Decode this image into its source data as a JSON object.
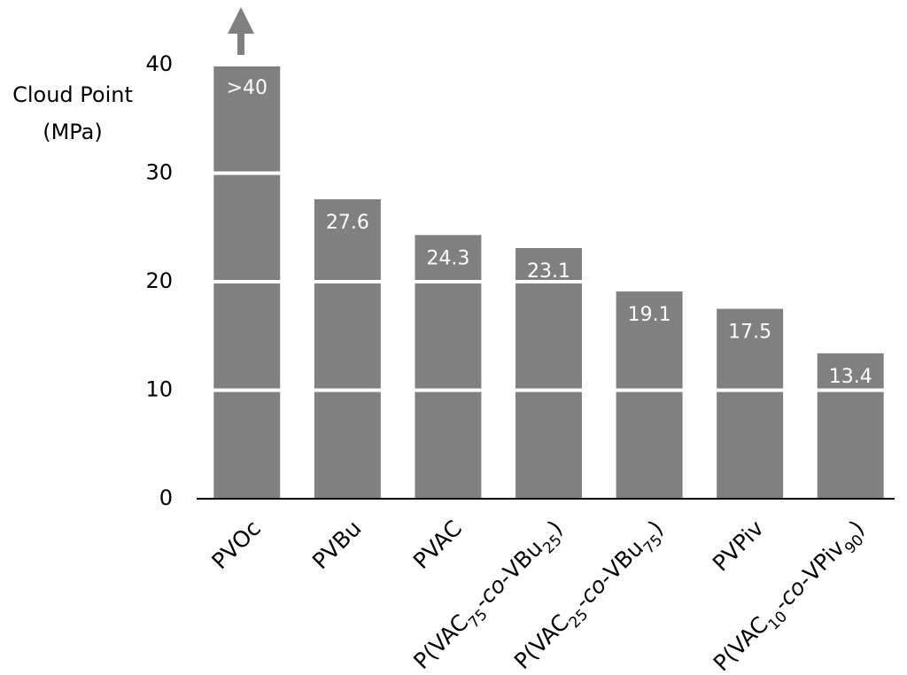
{
  "chart_data": {
    "type": "bar",
    "y_label": [
      "Cloud Point",
      "(MPa)"
    ],
    "categories": [
      "PVOc",
      "PVBu",
      "PVAC",
      "P(VAC75-co-VBu25)",
      "P(VAC25-co-VBu75)",
      "PVPiv",
      "P(VAC10-co-VPiv90)"
    ],
    "values": [
      40,
      27.6,
      24.3,
      23.1,
      19.1,
      17.5,
      13.4
    ],
    "value_labels": [
      ">40",
      "27.6",
      "24.3",
      "23.1",
      "19.1",
      "17.5",
      "13.4"
    ],
    "color": "#808080",
    "ylim": [
      0,
      40
    ],
    "yticks": [
      0,
      10,
      20,
      30,
      40
    ],
    "grid": true,
    "grid_color": "#ffffff"
  }
}
